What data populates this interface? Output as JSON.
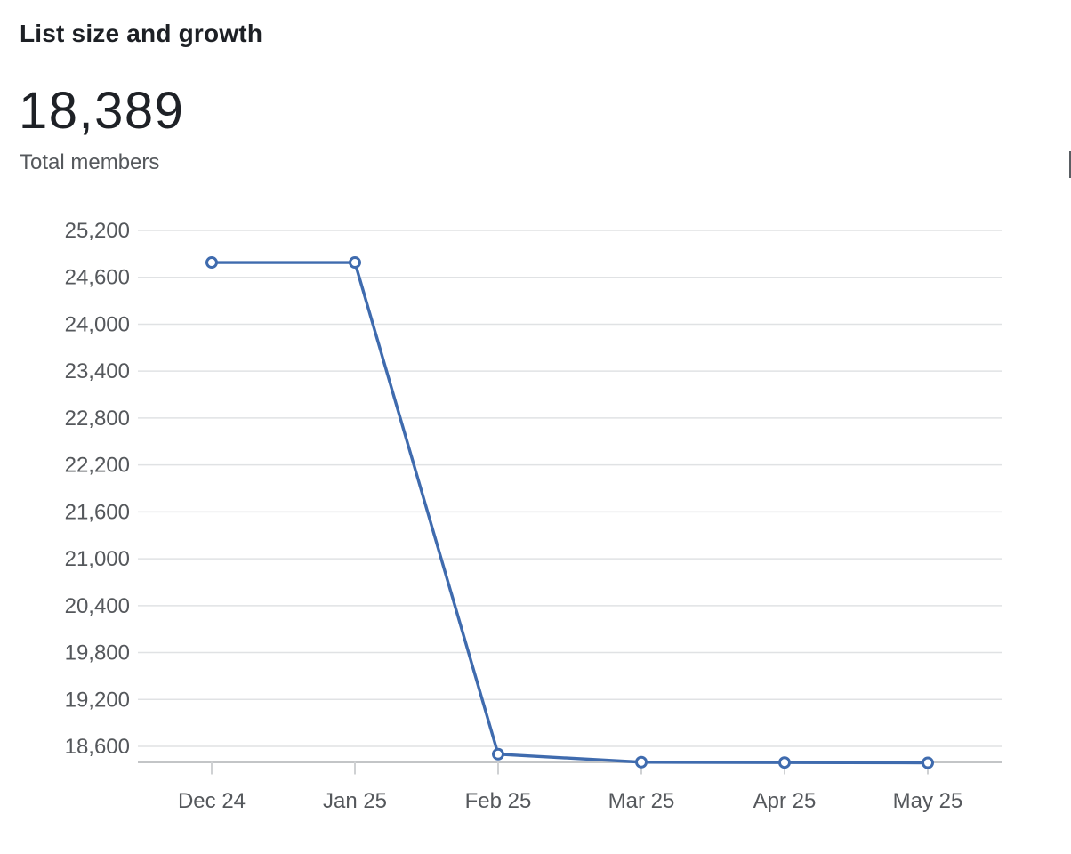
{
  "header": {
    "title": "List size and growth",
    "metric_value": "18,389",
    "metric_label": "Total members"
  },
  "chart_data": {
    "type": "line",
    "title": "List size and growth",
    "categories": [
      "Dec 24",
      "Jan 25",
      "Feb 25",
      "Mar 25",
      "Apr 25",
      "May 25"
    ],
    "series": [
      {
        "name": "Total members",
        "values": [
          24790,
          24790,
          18500,
          18398,
          18393,
          18389
        ]
      }
    ],
    "xlabel": "",
    "ylabel": "",
    "ylim": [
      18389,
      25200
    ],
    "yticks": [
      25200,
      24600,
      24000,
      23400,
      22800,
      22200,
      21600,
      21000,
      20400,
      19800,
      19200,
      18600
    ],
    "ytick_labels": [
      "25,200",
      "24,600",
      "24,000",
      "23,400",
      "22,800",
      "22,200",
      "21,600",
      "21,000",
      "20,400",
      "19,800",
      "19,200",
      "18,600"
    ],
    "grid": "horizontal",
    "legend": "none",
    "line_color": "#3f6bae",
    "marker_style": "open-circle",
    "marker_fill": "#ffffff"
  },
  "colors": {
    "background": "#ffffff",
    "line": "#3f6bae",
    "gridline": "#e0e2e4",
    "axis_baseline": "#c3c5c7",
    "tick": "#cfd1d3",
    "axis_text": "#55585c",
    "title_text": "#1d2025",
    "metric_text": "#1e2126",
    "caption_text": "#55585c",
    "clipped_fragment": "#5a5e63"
  }
}
